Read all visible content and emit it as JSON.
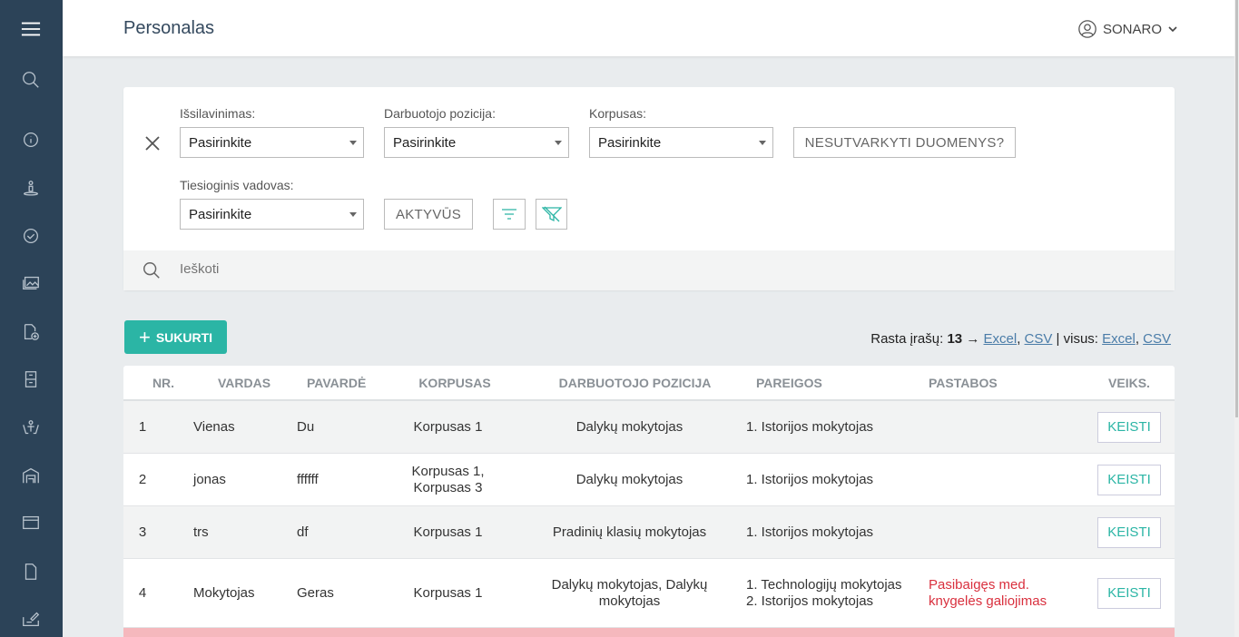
{
  "header": {
    "title": "Personalas",
    "user": "SONARO"
  },
  "sidebar": {
    "icons": [
      "menu-icon",
      "search-icon",
      "info-icon",
      "person-location-icon",
      "badge-check-icon",
      "images-icon",
      "file-add-icon",
      "cabinet-icon",
      "hands-child-icon",
      "warehouse-icon",
      "window-icon",
      "file-icon",
      "signature-icon"
    ]
  },
  "filters": {
    "education": {
      "label": "Išsilavinimas:",
      "value": "Pasirinkite"
    },
    "position": {
      "label": "Darbuotojo pozicija:",
      "value": "Pasirinkite"
    },
    "building": {
      "label": "Korpusas:",
      "value": "Pasirinkite"
    },
    "unsorted": "NESUTVARKYTI DUOMENYS?",
    "manager": {
      "label": "Tiesioginis vadovas:",
      "value": "Pasirinkite"
    },
    "active": "AKTYVŪS",
    "search_placeholder": "Ieškoti"
  },
  "create_label": "SUKURTI",
  "found": {
    "prefix": "Rasta įrašų:",
    "count": "13",
    "arrow": "→",
    "excel": "Excel",
    "csv": "CSV",
    "all": "| visus:",
    "excel_all": "Excel",
    "csv_all": "CSV"
  },
  "table": {
    "headers": [
      "NR.",
      "VARDAS",
      "PAVARDĖ",
      "KORPUSAS",
      "DARBUOTOJO POZICIJA",
      "PAREIGOS",
      "PASTABOS",
      "VEIKS."
    ],
    "rows": [
      {
        "nr": "1",
        "name": "Vienas",
        "surname": "Du",
        "building": "Korpusas 1",
        "position": "Dalykų mokytojas",
        "duties": [
          "1. Istorijos mokytojas"
        ],
        "notes": "",
        "action": "KEISTI"
      },
      {
        "nr": "2",
        "name": "jonas",
        "surname": "ffffff",
        "building": "Korpusas 1, Korpusas 3",
        "position": "Dalykų mokytojas",
        "duties": [
          "1. Istorijos mokytojas"
        ],
        "notes": "",
        "action": "KEISTI"
      },
      {
        "nr": "3",
        "name": "trs",
        "surname": "df",
        "building": "Korpusas 1",
        "position": "Pradinių klasių mokytojas",
        "duties": [
          "1. Istorijos mokytojas"
        ],
        "notes": "",
        "action": "KEISTI"
      },
      {
        "nr": "4",
        "name": "Mokytojas",
        "surname": "Geras",
        "building": "Korpusas 1",
        "position": "Dalykų mokytojas, Dalykų mokytojas",
        "duties": [
          "1. Technologijų mokytojas",
          "2. Istorijos mokytojas"
        ],
        "notes": "Pasibaigęs med. knygelės galiojimas",
        "action": "KEISTI"
      }
    ]
  },
  "colors": {
    "sidebar": "#2c4358",
    "accent": "#2bb5a5",
    "warning": "#d9303e",
    "warning_row": "#f5b8bd"
  }
}
